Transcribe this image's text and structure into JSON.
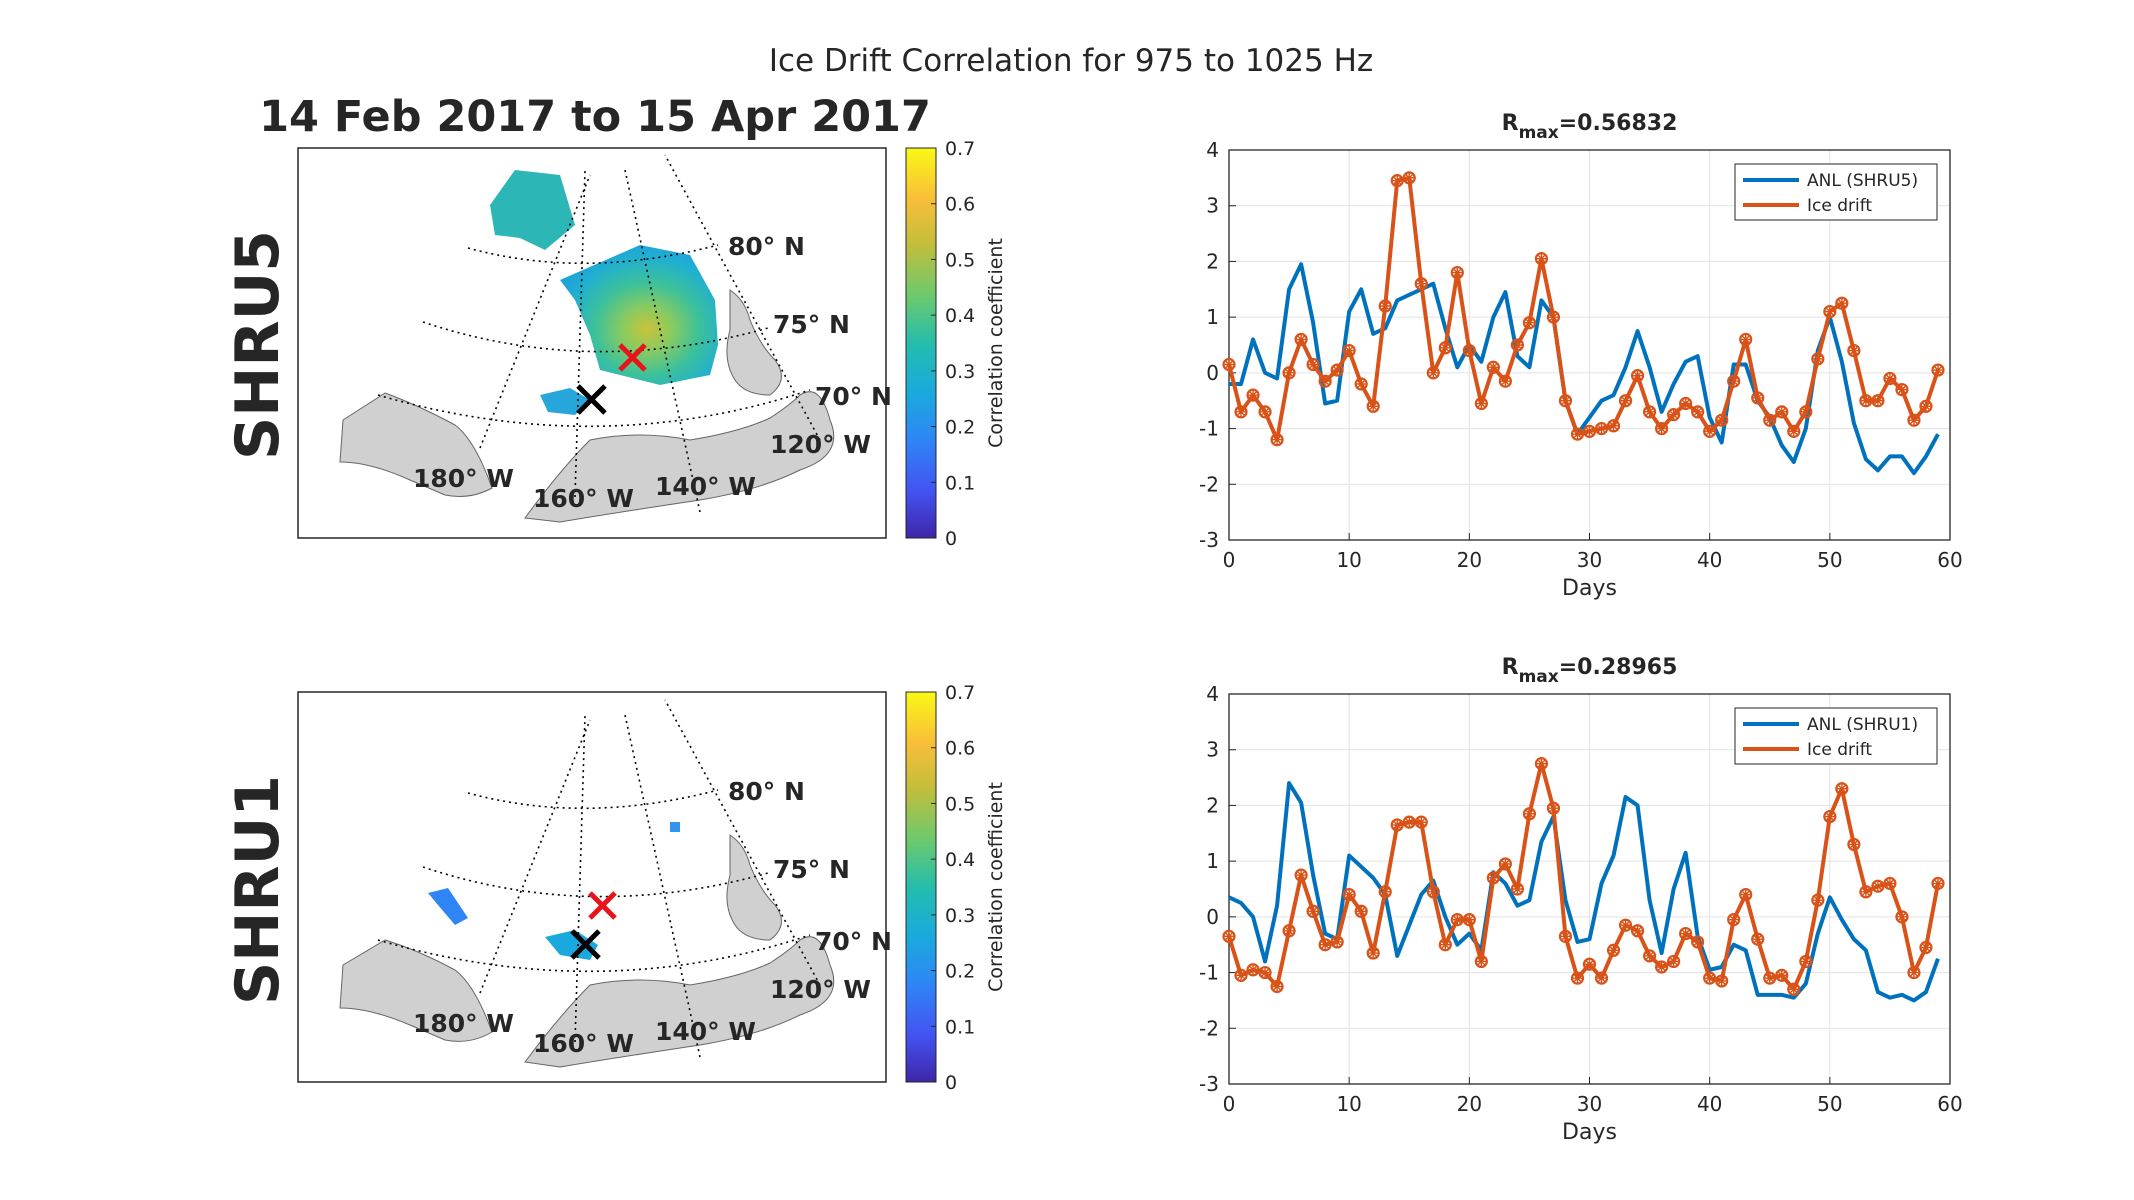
{
  "figure": {
    "title": "Ice Drift Correlation for 975 to 1025 Hz",
    "date_range": "14 Feb 2017 to 15 Apr 2017"
  },
  "maps": [
    {
      "row_label": "SHRU5",
      "colorbar": {
        "label": "Correlation coefficient",
        "ticks": [
          "0",
          "0.1",
          "0.2",
          "0.3",
          "0.4",
          "0.5",
          "0.6",
          "0.7"
        ],
        "range": [
          0,
          0.7
        ]
      },
      "graticule_labels": [
        "80° N",
        "75° N",
        "70° N",
        "120° W",
        "140° W",
        "160° W",
        "180° W"
      ],
      "markers": [
        "black-x: SHRU5 location",
        "red-x: maximum correlation"
      ]
    },
    {
      "row_label": "SHRU1",
      "colorbar": {
        "label": "Correlation coefficient",
        "ticks": [
          "0",
          "0.1",
          "0.2",
          "0.3",
          "0.4",
          "0.5",
          "0.6",
          "0.7"
        ],
        "range": [
          0,
          0.7
        ]
      },
      "graticule_labels": [
        "80° N",
        "75° N",
        "70° N",
        "120° W",
        "140° W",
        "160° W",
        "180° W"
      ],
      "markers": [
        "black-x: SHRU1 location",
        "red-x: maximum correlation"
      ]
    }
  ],
  "chart_data": [
    {
      "type": "line",
      "title_prefix": "R",
      "title_sub": "max",
      "title_value": "=0.56832",
      "xlabel": "Days",
      "ylabel": "",
      "xlim": [
        0,
        60
      ],
      "ylim": [
        -3,
        4
      ],
      "xticks": [
        0,
        10,
        20,
        30,
        40,
        50,
        60
      ],
      "yticks": [
        -3,
        -2,
        -1,
        0,
        1,
        2,
        3,
        4
      ],
      "grid": true,
      "legend_position": "top-right",
      "x": [
        0,
        1,
        2,
        3,
        4,
        5,
        6,
        7,
        8,
        9,
        10,
        11,
        12,
        13,
        14,
        15,
        16,
        17,
        18,
        19,
        20,
        21,
        22,
        23,
        24,
        25,
        26,
        27,
        28,
        29,
        30,
        31,
        32,
        33,
        34,
        35,
        36,
        37,
        38,
        39,
        40,
        41,
        42,
        43,
        44,
        45,
        46,
        47,
        48,
        49,
        50,
        51,
        52,
        53,
        54,
        55,
        56,
        57,
        58,
        59
      ],
      "series": [
        {
          "name": "ANL (SHRU5)",
          "color": "#0072BD",
          "marker": false,
          "values": [
            -0.2,
            -0.2,
            0.6,
            0.0,
            -0.1,
            1.5,
            1.95,
            0.9,
            -0.55,
            -0.5,
            1.1,
            1.5,
            0.7,
            0.8,
            1.3,
            1.4,
            1.5,
            1.6,
            0.8,
            0.1,
            0.5,
            0.2,
            1.0,
            1.45,
            0.3,
            0.1,
            1.3,
            1.0,
            -0.5,
            -1.1,
            -0.8,
            -0.5,
            -0.4,
            0.1,
            0.75,
            0.1,
            -0.7,
            -0.2,
            0.2,
            0.3,
            -0.8,
            -1.25,
            0.15,
            0.15,
            -0.5,
            -0.8,
            -1.3,
            -1.6,
            -1.0,
            0.4,
            1.0,
            0.2,
            -0.9,
            -1.55,
            -1.75,
            -1.5,
            -1.5,
            -1.8,
            -1.5,
            -1.1
          ]
        },
        {
          "name": "Ice drift",
          "color": "#D95319",
          "marker": true,
          "values": [
            0.15,
            -0.7,
            -0.4,
            -0.7,
            -1.2,
            0.0,
            0.6,
            0.15,
            -0.15,
            0.05,
            0.4,
            -0.2,
            -0.6,
            1.2,
            3.45,
            3.5,
            1.6,
            0.0,
            0.45,
            1.8,
            0.4,
            -0.55,
            0.1,
            -0.15,
            0.5,
            0.9,
            2.05,
            1.0,
            -0.5,
            -1.1,
            -1.05,
            -1.0,
            -0.95,
            -0.5,
            -0.05,
            -0.7,
            -1.0,
            -0.75,
            -0.55,
            -0.7,
            -1.05,
            -0.85,
            -0.15,
            0.6,
            -0.45,
            -0.85,
            -0.7,
            -1.05,
            -0.7,
            0.25,
            1.1,
            1.25,
            0.4,
            -0.5,
            -0.5,
            -0.1,
            -0.3,
            -0.85,
            -0.6,
            0.05
          ]
        }
      ]
    },
    {
      "type": "line",
      "title_prefix": "R",
      "title_sub": "max",
      "title_value": "=0.28965",
      "xlabel": "Days",
      "ylabel": "",
      "xlim": [
        0,
        60
      ],
      "ylim": [
        -3,
        4
      ],
      "xticks": [
        0,
        10,
        20,
        30,
        40,
        50,
        60
      ],
      "yticks": [
        -3,
        -2,
        -1,
        0,
        1,
        2,
        3,
        4
      ],
      "grid": true,
      "legend_position": "top-right",
      "x": [
        0,
        1,
        2,
        3,
        4,
        5,
        6,
        7,
        8,
        9,
        10,
        11,
        12,
        13,
        14,
        15,
        16,
        17,
        18,
        19,
        20,
        21,
        22,
        23,
        24,
        25,
        26,
        27,
        28,
        29,
        30,
        31,
        32,
        33,
        34,
        35,
        36,
        37,
        38,
        39,
        40,
        41,
        42,
        43,
        44,
        45,
        46,
        47,
        48,
        49,
        50,
        51,
        52,
        53,
        54,
        55,
        56,
        57,
        58,
        59
      ],
      "series": [
        {
          "name": "ANL (SHRU1)",
          "color": "#0072BD",
          "marker": false,
          "values": [
            0.35,
            0.25,
            0.0,
            -0.8,
            0.2,
            2.4,
            2.05,
            0.75,
            -0.3,
            -0.4,
            1.1,
            0.9,
            0.7,
            0.4,
            -0.7,
            -0.15,
            0.4,
            0.65,
            0.0,
            -0.5,
            -0.3,
            -0.6,
            0.8,
            0.6,
            0.2,
            0.3,
            1.35,
            1.8,
            0.3,
            -0.45,
            -0.4,
            0.6,
            1.1,
            2.15,
            2.0,
            0.3,
            -0.65,
            0.5,
            1.15,
            -0.35,
            -0.95,
            -0.9,
            -0.5,
            -0.6,
            -1.4,
            -1.4,
            -1.4,
            -1.45,
            -1.2,
            -0.3,
            0.35,
            -0.05,
            -0.4,
            -0.6,
            -1.35,
            -1.45,
            -1.4,
            -1.5,
            -1.35,
            -0.75
          ]
        },
        {
          "name": "Ice drift",
          "color": "#D95319",
          "marker": true,
          "values": [
            -0.35,
            -1.05,
            -0.95,
            -1.0,
            -1.25,
            -0.25,
            0.75,
            0.1,
            -0.5,
            -0.45,
            0.4,
            0.1,
            -0.65,
            0.45,
            1.65,
            1.7,
            1.7,
            0.45,
            -0.5,
            -0.05,
            -0.05,
            -0.8,
            0.7,
            0.95,
            0.5,
            1.85,
            2.75,
            1.95,
            -0.35,
            -1.1,
            -0.85,
            -1.1,
            -0.6,
            -0.15,
            -0.25,
            -0.7,
            -0.9,
            -0.8,
            -0.3,
            -0.45,
            -1.1,
            -1.15,
            -0.05,
            0.4,
            -0.4,
            -1.1,
            -1.05,
            -1.3,
            -0.8,
            0.3,
            1.8,
            2.3,
            1.3,
            0.45,
            0.55,
            0.6,
            0.0,
            -1.0,
            -0.55,
            0.6
          ]
        }
      ]
    }
  ]
}
